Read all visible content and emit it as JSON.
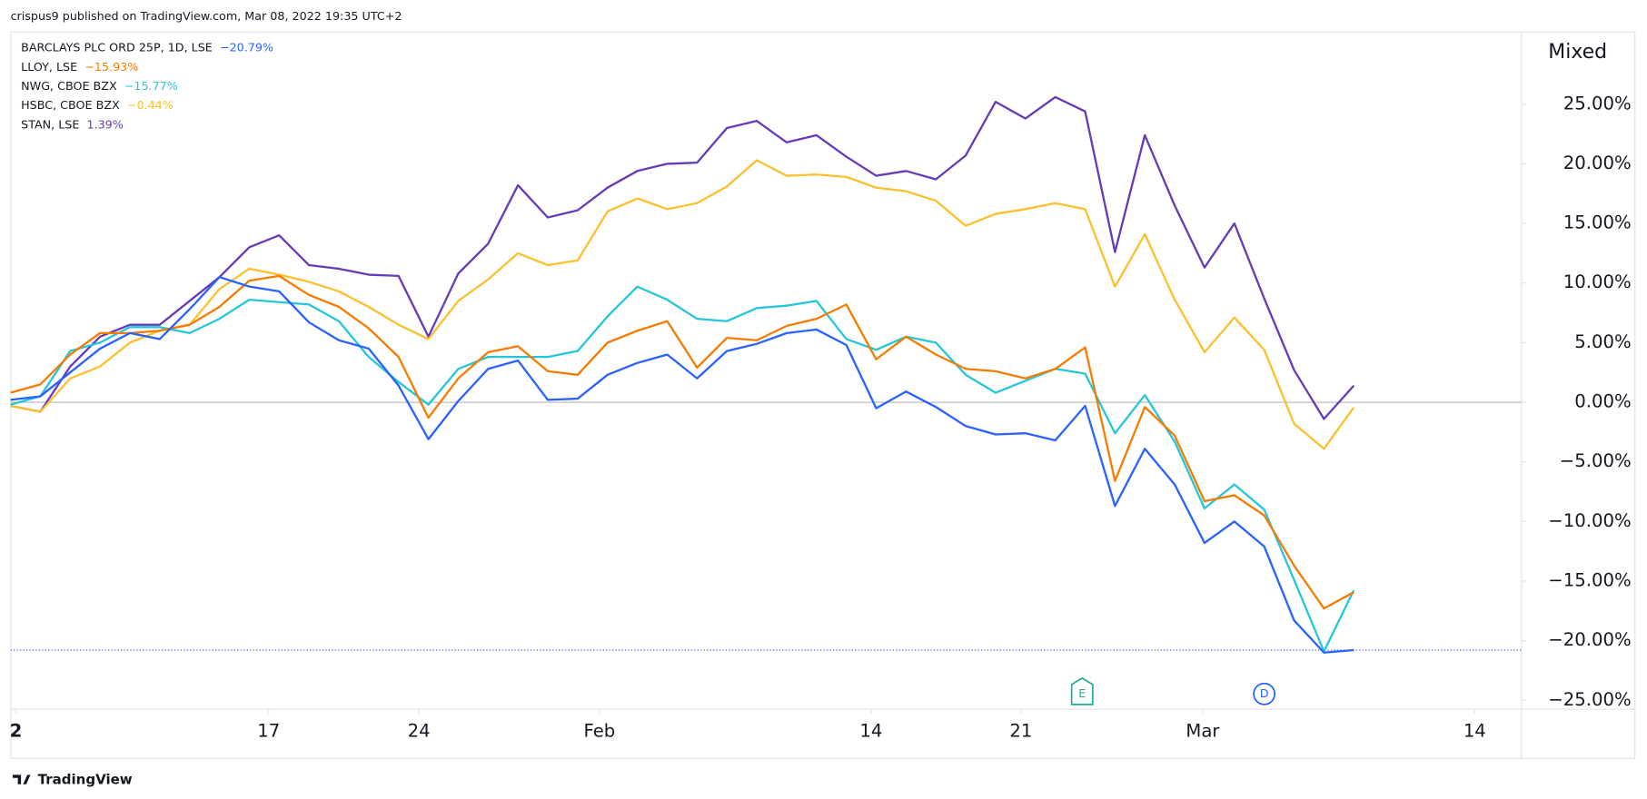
{
  "header": "crispus9 published on TradingView.com, Mar 08, 2022 19:35 UTC+2",
  "footer": "TradingView",
  "scale_mode": "Mixed",
  "chart_data": {
    "type": "line",
    "xlim": [
      0,
      50.6
    ],
    "xticks": [
      {
        "value": 0.18,
        "label": "2"
      },
      {
        "value": 8.65,
        "label": "17"
      },
      {
        "value": 13.68,
        "label": "24"
      },
      {
        "value": 19.73,
        "label": "Feb"
      },
      {
        "value": 28.83,
        "label": "14"
      },
      {
        "value": 33.85,
        "label": "21"
      },
      {
        "value": 39.94,
        "label": "Mar"
      },
      {
        "value": 49.05,
        "label": "14"
      }
    ],
    "ylim": [
      -25.7,
      31.1
    ],
    "yticks": [
      {
        "value": -25,
        "label": "−25.00%"
      },
      {
        "value": -20,
        "label": "−20.00%"
      },
      {
        "value": -15,
        "label": "−15.00%"
      },
      {
        "value": -10,
        "label": "−10.00%"
      },
      {
        "value": -5,
        "label": "−5.00%"
      },
      {
        "value": 0,
        "label": "0.00%"
      },
      {
        "value": 5,
        "label": "5.00%"
      },
      {
        "value": 10,
        "label": "10.00%"
      },
      {
        "value": 15,
        "label": "15.00%"
      },
      {
        "value": 20,
        "label": "20.00%"
      },
      {
        "value": 25,
        "label": "25.00%"
      }
    ],
    "events": [
      {
        "label": "E",
        "x": 35.9,
        "color": "#22ab94"
      },
      {
        "label": "D",
        "x": 42,
        "color": "#2962ff"
      }
    ],
    "series": [
      {
        "name": "BARCLAYS PLC ORD 25P, 1D, LSE",
        "change": "−20.79%",
        "color": "#2962ff",
        "values": [
          0.2,
          0.5,
          2.5,
          4.5,
          5.8,
          5.3,
          7.8,
          10.5,
          9.7,
          9.3,
          6.7,
          5.2,
          4.5,
          1.4,
          -3.1,
          0.1,
          2.8,
          3.5,
          0.2,
          0.3,
          2.3,
          3.3,
          4,
          2,
          4.3,
          4.9,
          5.8,
          6.1,
          4.8,
          -0.5,
          0.9,
          -0.4,
          -2,
          -2.7,
          -2.6,
          -3.2,
          -0.3,
          -8.7,
          -3.9,
          -6.9,
          -11.8,
          -10,
          -12.1,
          -18.3,
          -21,
          -20.79
        ]
      },
      {
        "name": "LLOY, LSE",
        "change": "−15.93%",
        "color": "#f57c00",
        "values": [
          0.8,
          1.5,
          4,
          5.8,
          5.8,
          6,
          6.5,
          8,
          10.2,
          10.6,
          9,
          8,
          6.2,
          3.8,
          -1.3,
          2,
          4.2,
          4.7,
          2.6,
          2.3,
          5,
          6,
          6.8,
          2.9,
          5.4,
          5.2,
          6.4,
          7,
          8.2,
          3.6,
          5.5,
          4,
          2.8,
          2.6,
          2,
          2.8,
          4.6,
          -6.6,
          -0.4,
          -2.8,
          -8.3,
          -7.8,
          -9.5,
          -13.7,
          -17.3,
          -15.93
        ]
      },
      {
        "name": "NWG, CBOE BZX",
        "change": "−15.77%",
        "color": "#26c6da",
        "values": [
          -0.2,
          0.5,
          4.3,
          5,
          6.3,
          6.3,
          5.8,
          7,
          8.6,
          8.4,
          8.2,
          6.8,
          3.8,
          1.7,
          -0.2,
          2.8,
          3.8,
          3.8,
          3.8,
          4.3,
          7.2,
          9.7,
          8.6,
          7,
          6.8,
          7.9,
          8.1,
          8.5,
          5.3,
          4.4,
          5.5,
          5,
          2.3,
          0.8,
          1.8,
          2.8,
          2.4,
          -2.6,
          0.6,
          -3.3,
          -8.9,
          -6.9,
          -9,
          -14.9,
          -20.9,
          -15.77
        ]
      },
      {
        "name": "HSBC, CBOE BZX",
        "change": "−0.44%",
        "color": "#fbc02d",
        "values": [
          -0.3,
          -0.8,
          2,
          3,
          5,
          6,
          6.5,
          9.5,
          11.2,
          10.7,
          10.1,
          9.3,
          8,
          6.5,
          5.3,
          8.5,
          10.3,
          12.5,
          11.5,
          11.9,
          16,
          17.1,
          16.2,
          16.7,
          18.1,
          20.3,
          19,
          19.1,
          18.9,
          18,
          17.7,
          16.9,
          14.8,
          15.8,
          16.2,
          16.7,
          16.2,
          9.7,
          14.1,
          8.6,
          4.2,
          7.1,
          4.4,
          -1.8,
          -3.9,
          -0.44
        ]
      },
      {
        "name": "STAN, LSE",
        "change": "1.39%",
        "color": "#673ab7",
        "values": [
          -0.3,
          -0.8,
          3,
          5.5,
          6.5,
          6.5,
          8.5,
          10.5,
          13,
          14,
          11.5,
          11.2,
          10.7,
          10.6,
          5.5,
          10.8,
          13.3,
          18.2,
          15.5,
          16.1,
          18,
          19.4,
          20,
          20.1,
          23,
          23.6,
          21.8,
          22.4,
          20.6,
          19,
          19.4,
          18.7,
          20.7,
          25.2,
          23.8,
          25.6,
          24.4,
          12.6,
          22.4,
          16.5,
          11.3,
          15,
          8.7,
          2.7,
          -1.4,
          1.39
        ]
      }
    ]
  }
}
